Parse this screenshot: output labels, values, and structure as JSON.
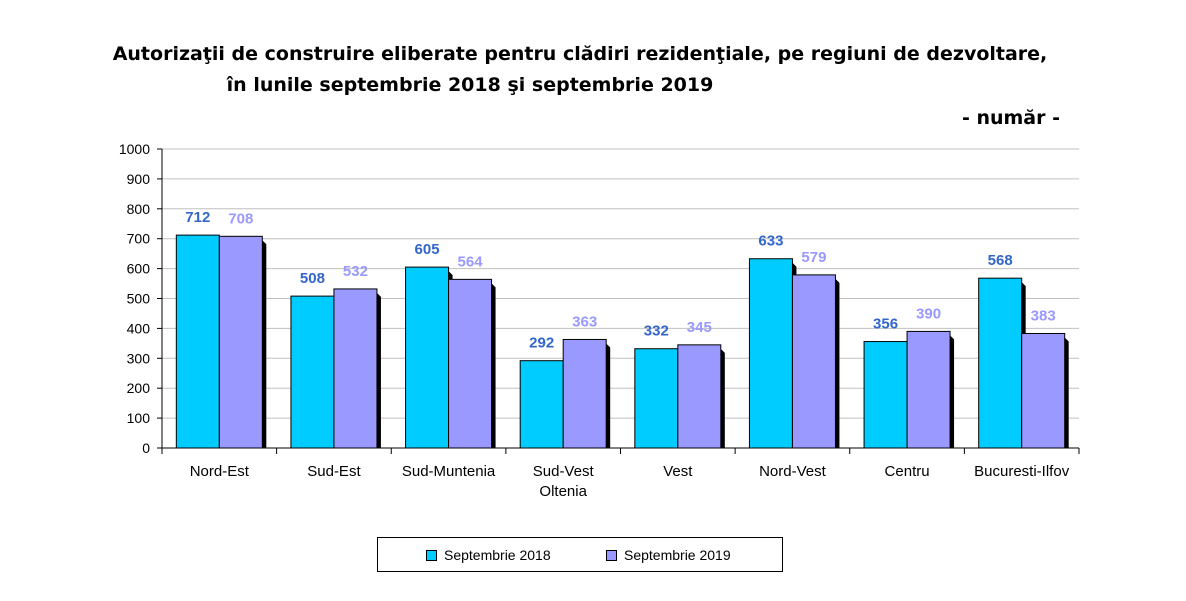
{
  "title_line1": "Autorizaţii de construire eliberate pentru clădiri rezidenţiale, pe regiuni de dezvoltare,",
  "title_line2": "în lunile septembrie 2018 şi septembrie 2019",
  "unit_label": "- număr -",
  "colors": {
    "series1": "#00CCFF",
    "series2": "#9999FF",
    "label1": "#3366CC",
    "label2": "#9999FF",
    "shadow": "#000000",
    "grid": "#C0C0C0"
  },
  "chart_data": {
    "type": "bar",
    "categories": [
      [
        "Nord-Est"
      ],
      [
        "Sud-Est"
      ],
      [
        "Sud-Muntenia"
      ],
      [
        "Sud-Vest",
        "Oltenia"
      ],
      [
        "Vest"
      ],
      [
        "Nord-Vest"
      ],
      [
        "Centru"
      ],
      [
        "Bucuresti-Ilfov"
      ]
    ],
    "series": [
      {
        "name": "Septembrie 2018",
        "values": [
          712,
          508,
          605,
          292,
          332,
          633,
          356,
          568
        ]
      },
      {
        "name": "Septembrie 2019",
        "values": [
          708,
          532,
          564,
          363,
          345,
          579,
          390,
          383
        ]
      }
    ],
    "ylim": [
      0,
      1000
    ],
    "yticks": [
      0,
      100,
      200,
      300,
      400,
      500,
      600,
      700,
      800,
      900,
      1000
    ],
    "grid": true,
    "legend_position": "bottom"
  }
}
